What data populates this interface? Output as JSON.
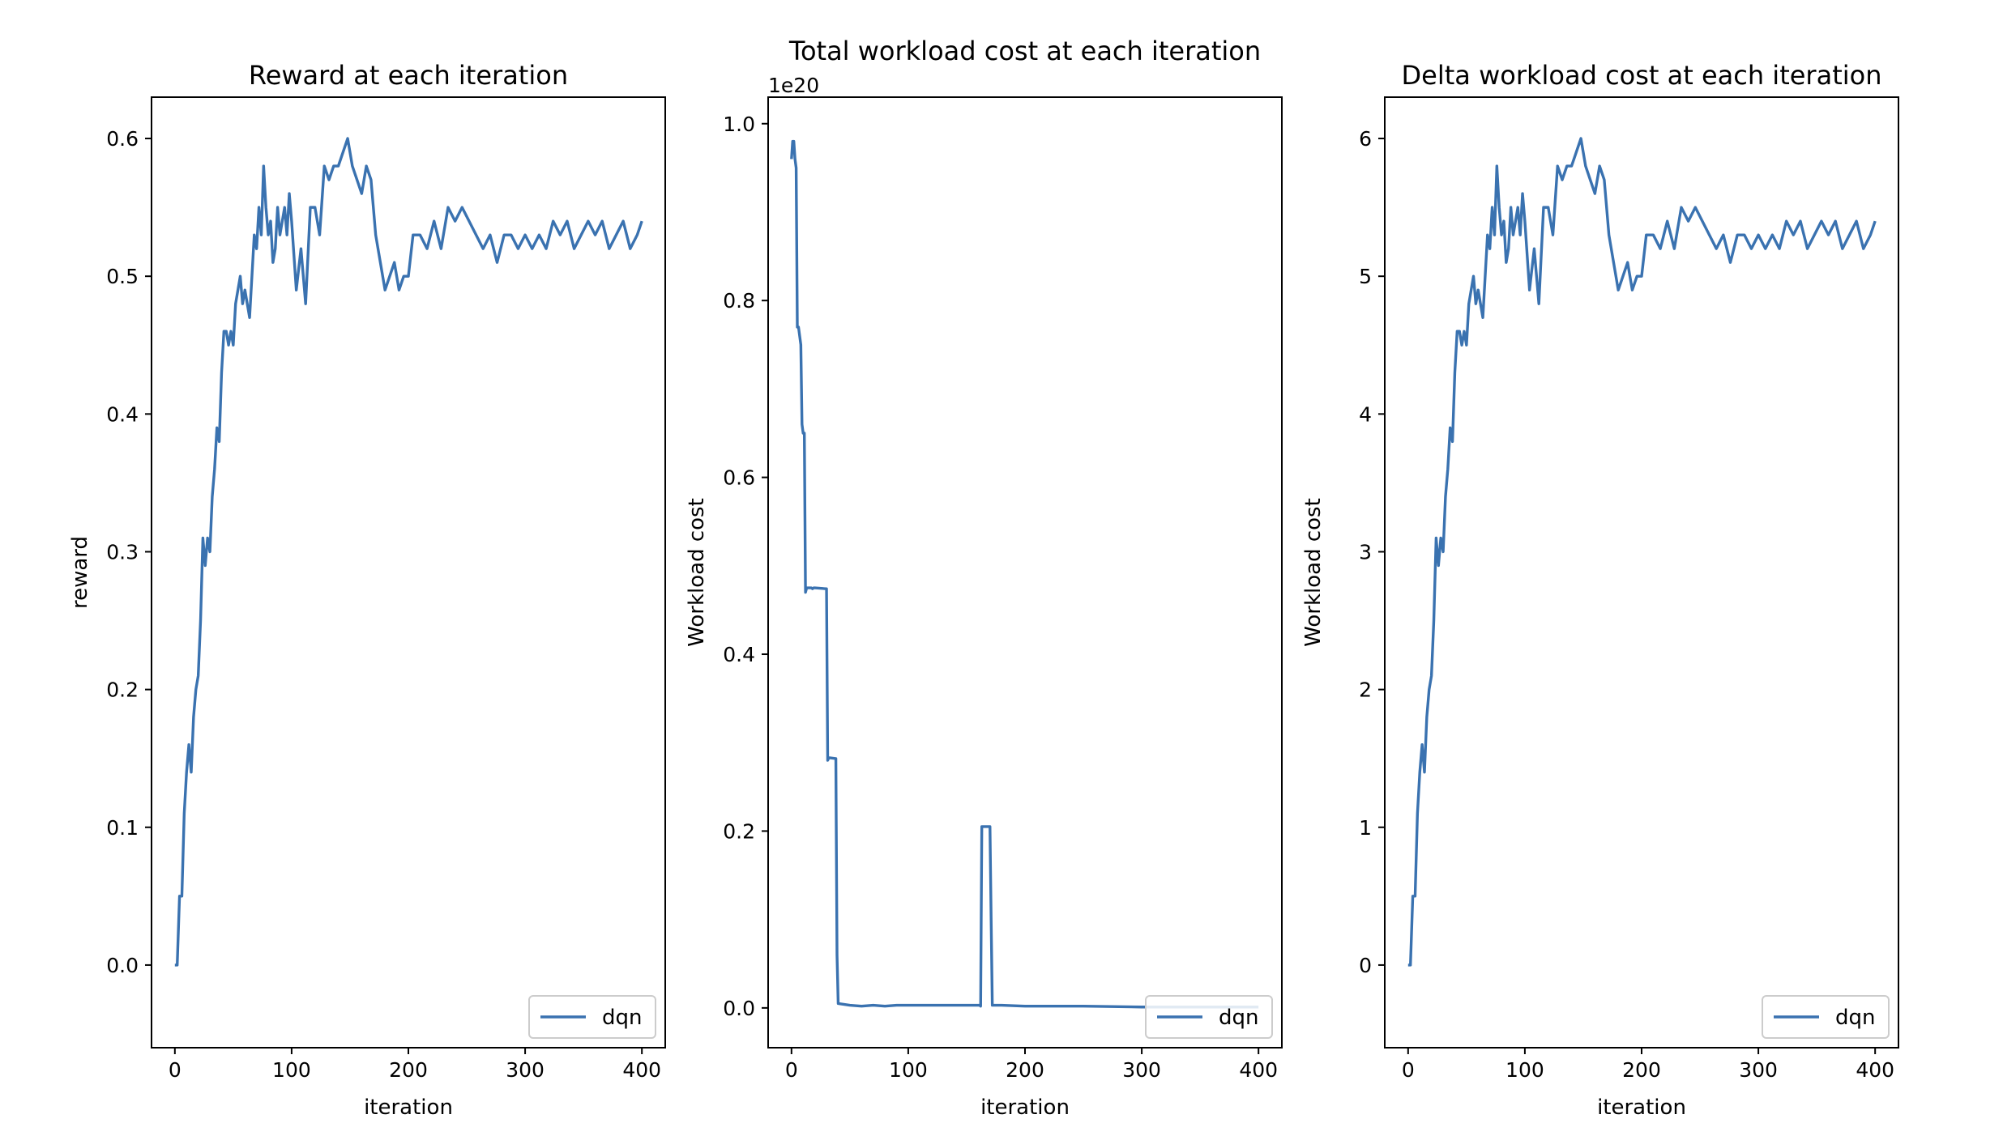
{
  "chart_data": [
    {
      "type": "line",
      "title": "Reward at each iteration",
      "xlabel": "iteration",
      "ylabel": "reward",
      "xlim": [
        -20,
        420
      ],
      "ylim": [
        -0.06,
        0.63
      ],
      "xticks": [
        0,
        100,
        200,
        300,
        400
      ],
      "xtick_labels": [
        "0",
        "100",
        "200",
        "300",
        "400"
      ],
      "yticks": [
        0.0,
        0.1,
        0.2,
        0.3,
        0.4,
        0.5,
        0.6
      ],
      "ytick_labels": [
        "0.0",
        "0.1",
        "0.2",
        "0.3",
        "0.4",
        "0.5",
        "0.6"
      ],
      "offset_text": "",
      "legend_position": "lower right",
      "series": [
        {
          "name": "dqn",
          "color": "#3a72b0",
          "x": [
            0,
            2,
            4,
            6,
            8,
            10,
            12,
            14,
            16,
            18,
            20,
            22,
            24,
            26,
            28,
            30,
            32,
            34,
            36,
            38,
            40,
            42,
            44,
            46,
            48,
            50,
            52,
            54,
            56,
            58,
            60,
            62,
            64,
            66,
            68,
            70,
            72,
            74,
            76,
            78,
            80,
            82,
            84,
            86,
            88,
            90,
            92,
            94,
            96,
            98,
            100,
            104,
            108,
            112,
            116,
            120,
            124,
            128,
            132,
            136,
            140,
            144,
            148,
            152,
            156,
            160,
            164,
            168,
            172,
            176,
            180,
            184,
            188,
            192,
            196,
            200,
            204,
            210,
            216,
            222,
            228,
            234,
            240,
            246,
            252,
            258,
            264,
            270,
            276,
            282,
            288,
            294,
            300,
            306,
            312,
            318,
            324,
            330,
            336,
            342,
            348,
            354,
            360,
            366,
            372,
            378,
            384,
            390,
            396,
            400
          ],
          "y": [
            0.0,
            0.0,
            0.05,
            0.05,
            0.11,
            0.14,
            0.16,
            0.14,
            0.18,
            0.2,
            0.21,
            0.25,
            0.31,
            0.29,
            0.31,
            0.3,
            0.34,
            0.36,
            0.39,
            0.38,
            0.43,
            0.46,
            0.46,
            0.45,
            0.46,
            0.45,
            0.48,
            0.49,
            0.5,
            0.48,
            0.49,
            0.48,
            0.47,
            0.5,
            0.53,
            0.52,
            0.55,
            0.53,
            0.58,
            0.55,
            0.53,
            0.54,
            0.51,
            0.52,
            0.55,
            0.53,
            0.54,
            0.55,
            0.53,
            0.56,
            0.54,
            0.49,
            0.52,
            0.48,
            0.55,
            0.55,
            0.53,
            0.58,
            0.57,
            0.58,
            0.58,
            0.59,
            0.6,
            0.58,
            0.57,
            0.56,
            0.58,
            0.57,
            0.53,
            0.51,
            0.49,
            0.5,
            0.51,
            0.49,
            0.5,
            0.5,
            0.53,
            0.53,
            0.52,
            0.54,
            0.52,
            0.55,
            0.54,
            0.55,
            0.54,
            0.53,
            0.52,
            0.53,
            0.51,
            0.53,
            0.53,
            0.52,
            0.53,
            0.52,
            0.53,
            0.52,
            0.54,
            0.53,
            0.54,
            0.52,
            0.53,
            0.54,
            0.53,
            0.54,
            0.52,
            0.53,
            0.54,
            0.52,
            0.53,
            0.54
          ]
        }
      ]
    },
    {
      "type": "line",
      "title": "Total workload cost at each iteration",
      "xlabel": "iteration",
      "ylabel": "Workload cost",
      "xlim": [
        -20,
        420
      ],
      "ylim": [
        -0.045,
        1.03
      ],
      "xticks": [
        0,
        100,
        200,
        300,
        400
      ],
      "xtick_labels": [
        "0",
        "100",
        "200",
        "300",
        "400"
      ],
      "yticks": [
        0.0,
        0.2,
        0.4,
        0.6,
        0.8,
        1.0
      ],
      "ytick_labels": [
        "0.0",
        "0.2",
        "0.4",
        "0.6",
        "0.8",
        "1.0"
      ],
      "offset_text": "1e20",
      "legend_position": "lower right",
      "series": [
        {
          "name": "dqn",
          "color": "#3a72b0",
          "x": [
            0,
            1,
            2,
            3,
            4,
            5,
            6,
            7,
            8,
            9,
            10,
            11,
            12,
            13,
            14,
            15,
            16,
            17,
            18,
            19,
            20,
            30,
            31,
            32,
            38,
            39,
            40,
            50,
            60,
            70,
            80,
            90,
            100,
            110,
            120,
            130,
            140,
            150,
            160,
            161,
            162,
            163,
            164,
            170,
            171,
            172,
            173,
            180,
            200,
            250,
            300,
            350,
            400
          ],
          "y": [
            0.96,
            0.98,
            0.98,
            0.96,
            0.95,
            0.77,
            0.77,
            0.76,
            0.75,
            0.66,
            0.65,
            0.65,
            0.47,
            0.475,
            0.475,
            0.475,
            0.475,
            0.475,
            0.474,
            0.475,
            0.475,
            0.474,
            0.28,
            0.283,
            0.282,
            0.06,
            0.005,
            0.003,
            0.002,
            0.003,
            0.002,
            0.003,
            0.003,
            0.003,
            0.003,
            0.003,
            0.003,
            0.003,
            0.003,
            0.003,
            0.002,
            0.205,
            0.205,
            0.205,
            0.1,
            0.003,
            0.003,
            0.003,
            0.002,
            0.002,
            0.001,
            0.001,
            0.001
          ]
        }
      ]
    },
    {
      "type": "line",
      "title": "Delta workload cost at each iteration",
      "xlabel": "iteration",
      "ylabel": "Workload cost",
      "xlim": [
        -20,
        420
      ],
      "ylim": [
        -0.6,
        6.3
      ],
      "xticks": [
        0,
        100,
        200,
        300,
        400
      ],
      "xtick_labels": [
        "0",
        "100",
        "200",
        "300",
        "400"
      ],
      "yticks": [
        0,
        1,
        2,
        3,
        4,
        5,
        6
      ],
      "ytick_labels": [
        "0",
        "1",
        "2",
        "3",
        "4",
        "5",
        "6"
      ],
      "offset_text": "",
      "legend_position": "lower right",
      "series": [
        {
          "name": "dqn",
          "color": "#3a72b0",
          "x": [
            0,
            2,
            4,
            6,
            8,
            10,
            12,
            14,
            16,
            18,
            20,
            22,
            24,
            26,
            28,
            30,
            32,
            34,
            36,
            38,
            40,
            42,
            44,
            46,
            48,
            50,
            52,
            54,
            56,
            58,
            60,
            62,
            64,
            66,
            68,
            70,
            72,
            74,
            76,
            78,
            80,
            82,
            84,
            86,
            88,
            90,
            92,
            94,
            96,
            98,
            100,
            104,
            108,
            112,
            116,
            120,
            124,
            128,
            132,
            136,
            140,
            144,
            148,
            152,
            156,
            160,
            164,
            168,
            172,
            176,
            180,
            184,
            188,
            192,
            196,
            200,
            204,
            210,
            216,
            222,
            228,
            234,
            240,
            246,
            252,
            258,
            264,
            270,
            276,
            282,
            288,
            294,
            300,
            306,
            312,
            318,
            324,
            330,
            336,
            342,
            348,
            354,
            360,
            366,
            372,
            378,
            384,
            390,
            396,
            400
          ],
          "y": [
            0.0,
            0.0,
            0.5,
            0.5,
            1.1,
            1.4,
            1.6,
            1.4,
            1.8,
            2.0,
            2.1,
            2.5,
            3.1,
            2.9,
            3.1,
            3.0,
            3.4,
            3.6,
            3.9,
            3.8,
            4.3,
            4.6,
            4.6,
            4.5,
            4.6,
            4.5,
            4.8,
            4.9,
            5.0,
            4.8,
            4.9,
            4.8,
            4.7,
            5.0,
            5.3,
            5.2,
            5.5,
            5.3,
            5.8,
            5.5,
            5.3,
            5.4,
            5.1,
            5.2,
            5.5,
            5.3,
            5.4,
            5.5,
            5.3,
            5.6,
            5.4,
            4.9,
            5.2,
            4.8,
            5.5,
            5.5,
            5.3,
            5.8,
            5.7,
            5.8,
            5.8,
            5.9,
            6.0,
            5.8,
            5.7,
            5.6,
            5.8,
            5.7,
            5.3,
            5.1,
            4.9,
            5.0,
            5.1,
            4.9,
            5.0,
            5.0,
            5.3,
            5.3,
            5.2,
            5.4,
            5.2,
            5.5,
            5.4,
            5.5,
            5.4,
            5.3,
            5.2,
            5.3,
            5.1,
            5.3,
            5.3,
            5.2,
            5.3,
            5.2,
            5.3,
            5.2,
            5.4,
            5.3,
            5.4,
            5.2,
            5.3,
            5.4,
            5.3,
            5.4,
            5.2,
            5.3,
            5.4,
            5.2,
            5.3,
            5.4
          ]
        }
      ]
    }
  ]
}
